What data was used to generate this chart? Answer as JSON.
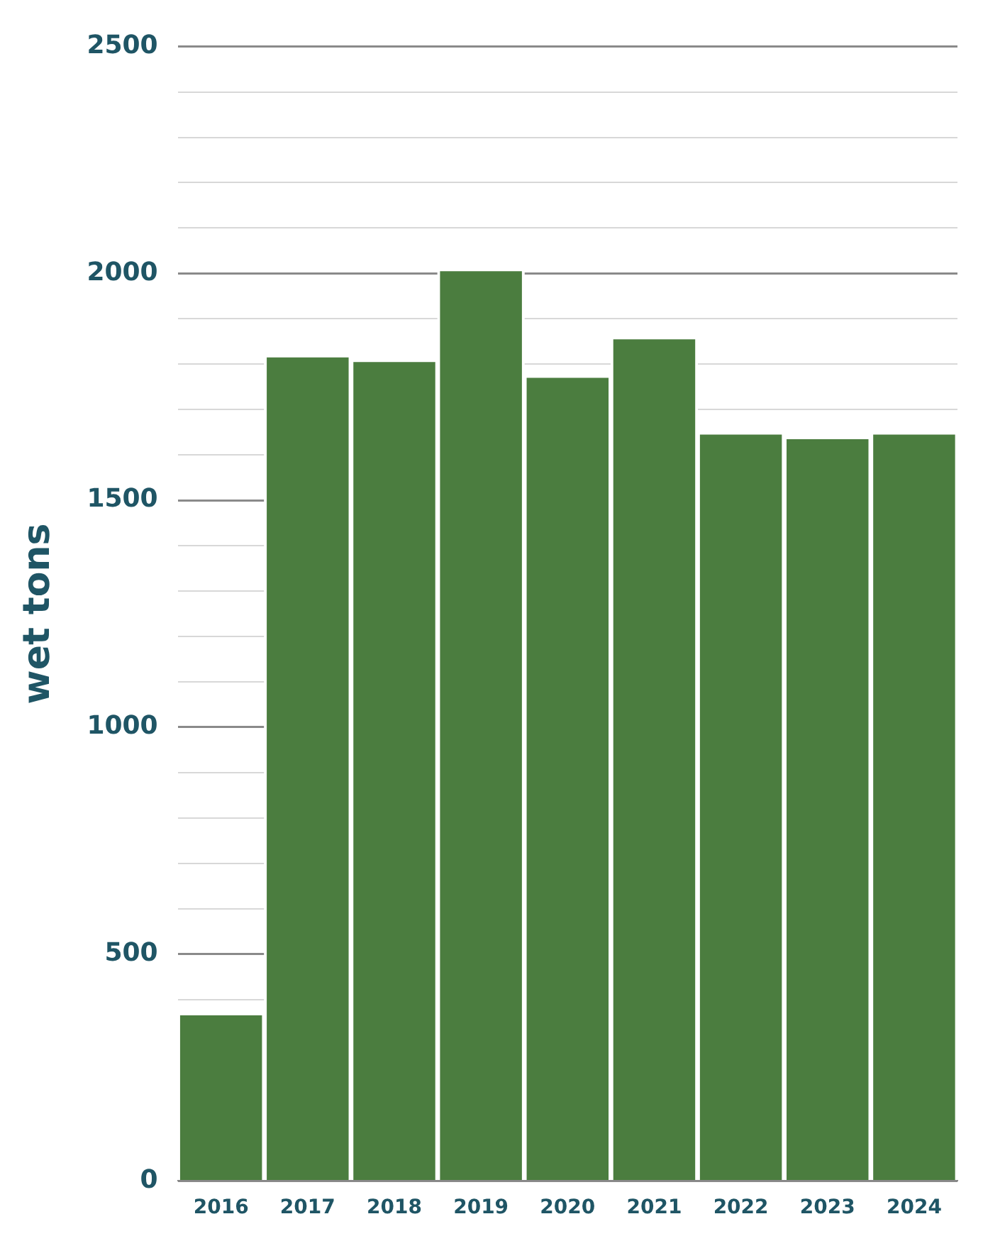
{
  "chart_data": {
    "type": "bar",
    "ylabel": "wet tons",
    "categories": [
      "2016",
      "2017",
      "2018",
      "2019",
      "2020",
      "2021",
      "2022",
      "2023",
      "2024"
    ],
    "values": [
      370,
      1820,
      1810,
      2010,
      1775,
      1860,
      1650,
      1640,
      1650
    ],
    "color": "#4b7d3f",
    "ylim": [
      0,
      2500
    ],
    "yticks": [
      0,
      {
        "value": 400,
        "label": null
      },
      500,
      {
        "value": 600,
        "label": null
      },
      {
        "value": 700,
        "label": null
      },
      {
        "value": 800,
        "label": null
      },
      {
        "value": 900,
        "label": null
      },
      1000,
      {
        "value": 1100,
        "label": null
      },
      {
        "value": 1200,
        "label": null
      },
      {
        "value": 1300,
        "label": null
      },
      {
        "value": 1400,
        "label": null
      },
      1500,
      {
        "value": 1600,
        "label": null
      },
      {
        "value": 1700,
        "label": null
      },
      {
        "value": 1800,
        "label": null
      },
      {
        "value": 1900,
        "label": null
      },
      2000,
      {
        "value": 2100,
        "label": null
      },
      {
        "value": 2200,
        "label": null
      },
      {
        "value": 2300,
        "label": null
      },
      {
        "value": 2400,
        "label": null
      },
      2500
    ],
    "grid": "y",
    "legend": false
  }
}
